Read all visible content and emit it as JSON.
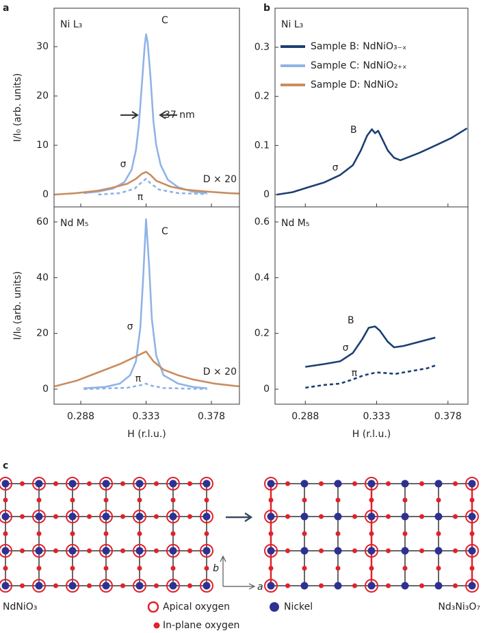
{
  "panel_labels": [
    "a",
    "b",
    "c"
  ],
  "chart_data": [
    {
      "type": "line",
      "title": "Ni L₃",
      "ylabel": "I/I₀ (arb. units)",
      "xlim": [
        0.2696,
        0.3973
      ],
      "ylim": [
        -2.5,
        37.8
      ],
      "yticks": [
        0,
        10,
        20,
        30
      ],
      "annotations": [
        "C",
        "37 nm",
        "σ",
        "π",
        "D × 20"
      ],
      "series": [
        {
          "color": "#8fb3e6",
          "dash": false,
          "x": [
            0.29,
            0.3,
            0.31,
            0.318,
            0.323,
            0.326,
            0.328,
            0.33,
            0.332,
            0.333,
            0.334,
            0.336,
            0.338,
            0.34,
            0.343,
            0.348,
            0.355,
            0.365,
            0.375
          ],
          "values": [
            0.3,
            0.6,
            1.2,
            2.5,
            5,
            9,
            14,
            22,
            30,
            32.5,
            31,
            24,
            15,
            10,
            6,
            3,
            1.5,
            0.6,
            0.3
          ]
        },
        {
          "color": "#c98c5f",
          "dash": false,
          "x": [
            0.27,
            0.285,
            0.3,
            0.31,
            0.32,
            0.326,
            0.33,
            0.333,
            0.336,
            0.34,
            0.35,
            0.36,
            0.375,
            0.39,
            0.397
          ],
          "values": [
            0,
            0.3,
            0.8,
            1.4,
            2.2,
            3.2,
            4.2,
            4.6,
            4,
            2.8,
            1.6,
            1,
            0.6,
            0.3,
            0.2
          ]
        },
        {
          "color": "#8fb3e6",
          "dash": true,
          "x": [
            0.3,
            0.315,
            0.325,
            0.33,
            0.333,
            0.336,
            0.342,
            0.355,
            0.375
          ],
          "values": [
            0,
            0.3,
            1.2,
            2.5,
            3.2,
            2.3,
            1,
            0.3,
            0.1
          ]
        }
      ]
    },
    {
      "type": "line",
      "title": "Ni L₃",
      "xlim": [
        0.2689,
        0.3906
      ],
      "ylim": [
        -0.025,
        0.3795
      ],
      "yticks": [
        0,
        0.1,
        0.2,
        0.3
      ],
      "annotations": [
        "B",
        "σ"
      ],
      "legend": [
        {
          "prefix": "Sample B:",
          "formula": "NdNiO₃₋ₓ",
          "color": "#1b3f72"
        },
        {
          "prefix": "Sample C:",
          "formula": "NdNiO₂₊ₓ",
          "color": "#8fb3e6"
        },
        {
          "prefix": "Sample D:",
          "formula": "NdNiO₂",
          "color": "#c98c5f"
        }
      ],
      "series": [
        {
          "color": "#1b3f72",
          "dash": false,
          "x": [
            0.27,
            0.28,
            0.29,
            0.3,
            0.31,
            0.318,
            0.323,
            0.327,
            0.33,
            0.332,
            0.334,
            0.337,
            0.34,
            0.344,
            0.348,
            0.352,
            0.36,
            0.37,
            0.38,
            0.39
          ],
          "values": [
            0,
            0.005,
            0.015,
            0.025,
            0.04,
            0.06,
            0.09,
            0.12,
            0.133,
            0.125,
            0.13,
            0.11,
            0.09,
            0.075,
            0.07,
            0.075,
            0.085,
            0.1,
            0.115,
            0.135
          ]
        }
      ]
    },
    {
      "type": "line",
      "title": "Nd M₅",
      "ylabel": "I/I₀ (arb. units)",
      "xlabel": "H (r.l.u.)",
      "xlim": [
        0.2696,
        0.3973
      ],
      "ylim": [
        -5.4,
        65.4
      ],
      "yticks": [
        0,
        20,
        40,
        60
      ],
      "xticks": [
        0.288,
        0.333,
        0.378
      ],
      "annotations": [
        "C",
        "σ",
        "π",
        "D × 20"
      ],
      "series": [
        {
          "color": "#8fb3e6",
          "dash": false,
          "x": [
            0.29,
            0.305,
            0.315,
            0.322,
            0.326,
            0.329,
            0.331,
            0.333,
            0.335,
            0.337,
            0.34,
            0.345,
            0.355,
            0.365,
            0.375
          ],
          "values": [
            0.3,
            0.8,
            2,
            5,
            10,
            22,
            40,
            61,
            45,
            25,
            12,
            5,
            2,
            0.8,
            0.3
          ]
        },
        {
          "color": "#c98c5f",
          "dash": false,
          "x": [
            0.27,
            0.285,
            0.3,
            0.315,
            0.325,
            0.333,
            0.338,
            0.345,
            0.355,
            0.365,
            0.38,
            0.397
          ],
          "values": [
            1,
            3,
            6,
            9,
            11.5,
            13.5,
            10,
            7,
            5,
            3.5,
            2,
            1
          ]
        },
        {
          "color": "#8fb3e6",
          "dash": true,
          "x": [
            0.29,
            0.32,
            0.33,
            0.333,
            0.336,
            0.345,
            0.375
          ],
          "values": [
            0,
            0.5,
            1.5,
            2,
            1.3,
            0.4,
            0
          ]
        }
      ]
    },
    {
      "type": "line",
      "title": "Nd M₅",
      "xlabel": "H (r.l.u.)",
      "xlim": [
        0.2689,
        0.3906
      ],
      "ylim": [
        -0.054,
        0.654
      ],
      "yticks": [
        0,
        0.2,
        0.4,
        0.6
      ],
      "xticks": [
        0.288,
        0.333,
        0.378
      ],
      "annotations": [
        "B",
        "σ",
        "π"
      ],
      "series": [
        {
          "color": "#1b3f72",
          "dash": false,
          "x": [
            0.288,
            0.3,
            0.31,
            0.318,
            0.324,
            0.328,
            0.332,
            0.335,
            0.34,
            0.344,
            0.35,
            0.36,
            0.37
          ],
          "values": [
            0.08,
            0.09,
            0.1,
            0.13,
            0.18,
            0.22,
            0.225,
            0.21,
            0.17,
            0.15,
            0.155,
            0.17,
            0.185
          ]
        },
        {
          "color": "#1b3f72",
          "dash": true,
          "x": [
            0.288,
            0.3,
            0.31,
            0.318,
            0.325,
            0.333,
            0.345,
            0.355,
            0.365,
            0.37
          ],
          "values": [
            0.005,
            0.015,
            0.02,
            0.035,
            0.05,
            0.06,
            0.055,
            0.065,
            0.075,
            0.085
          ]
        }
      ]
    }
  ],
  "diagram": {
    "left_label": "NdNiO₃",
    "right_label": "Nd₃Ni₃O₇",
    "axis_a": "a",
    "axis_b": "b",
    "legend": [
      "Apical oxygen",
      "Nickel",
      "In-plane oxygen"
    ]
  }
}
